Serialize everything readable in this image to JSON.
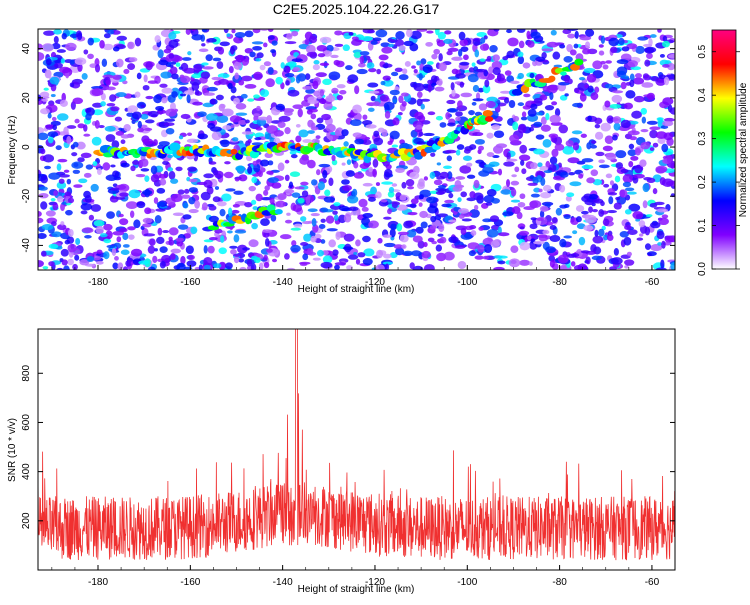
{
  "title": "C2E5.2025.104.22.26.G17",
  "chart_data": [
    {
      "type": "heatmap",
      "xlabel": "Height of straight line (km)",
      "ylabel": "Frequency (Hz)",
      "xlim": [
        -193,
        -55
      ],
      "ylim": [
        -50,
        48
      ],
      "xticks": [
        -180,
        -160,
        -140,
        -120,
        -100,
        -80,
        -60
      ],
      "yticks": [
        -40,
        -20,
        0,
        20,
        40
      ],
      "colorbar": {
        "label": "Normalized spectral amplitude",
        "range": [
          0,
          0.55
        ],
        "ticks": [
          "0.0",
          "0.1",
          "0.2",
          "0.3",
          "0.4",
          "0.5"
        ],
        "colors": [
          "#ffffff",
          "#8000ff",
          "#0000ff",
          "#00ffff",
          "#00ff00",
          "#ffff00",
          "#ff0000",
          "#ff0080"
        ]
      },
      "features": [
        {
          "x": [
            -180,
            -170,
            -160,
            -150,
            -140,
            -130,
            -120,
            -110,
            -100,
            -95
          ],
          "y": [
            -2,
            -2,
            -1,
            -3,
            0,
            -1,
            -4,
            -2,
            8,
            13
          ]
        },
        {
          "x": [
            -155,
            -140
          ],
          "y": [
            -32,
            -25
          ]
        },
        {
          "x": [
            -90,
            -75
          ],
          "y": [
            22,
            35
          ]
        }
      ]
    },
    {
      "type": "line",
      "xlabel": "Height of straight line (km)",
      "ylabel": "SNR (10 * v/v)",
      "xlim": [
        -193,
        -55
      ],
      "ylim": [
        0,
        980
      ],
      "xticks": [
        -180,
        -160,
        -140,
        -120,
        -100,
        -80,
        -60
      ],
      "yticks": [
        200,
        400,
        600,
        800
      ],
      "series_color": "#f03030",
      "baseline": 170,
      "peak": {
        "x": -137,
        "y": 980
      }
    }
  ]
}
